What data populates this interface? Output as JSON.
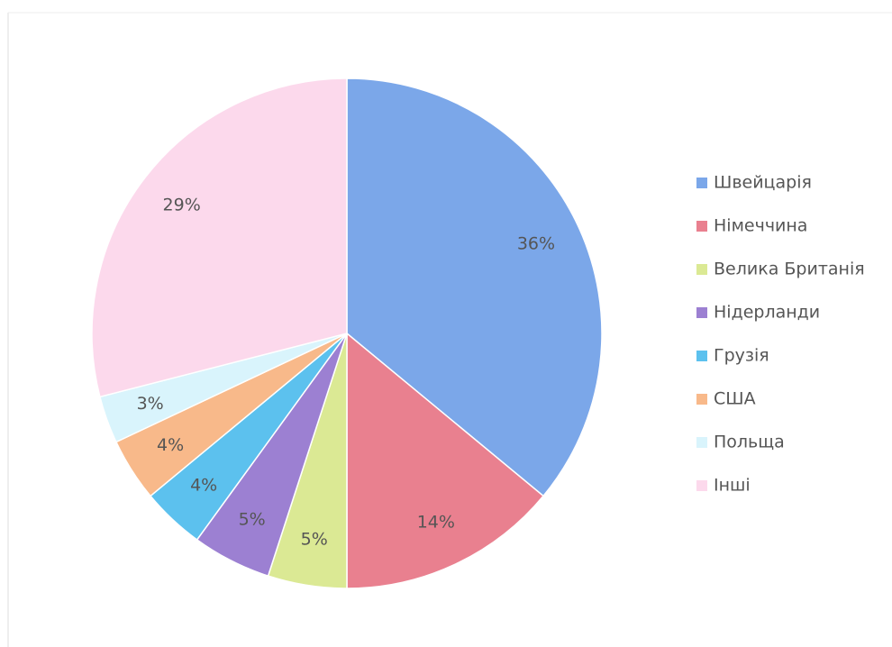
{
  "chart_data": {
    "type": "pie",
    "categories": [
      "Швейцарія",
      "Німеччина",
      "Велика Британія",
      "Нідерланди",
      "Грузія",
      "США",
      "Польща",
      "Інші"
    ],
    "values": [
      36,
      14,
      5,
      5,
      4,
      4,
      3,
      29
    ],
    "value_labels": [
      "36%",
      "14%",
      "5%",
      "5%",
      "4%",
      "4%",
      "3%",
      "29%"
    ],
    "colors": [
      "#7ba7e9",
      "#e9808f",
      "#dbe994",
      "#9c80d2",
      "#5cc1ee",
      "#f8b98a",
      "#d9f4fc",
      "#fcd9ec"
    ],
    "legend": "right"
  }
}
